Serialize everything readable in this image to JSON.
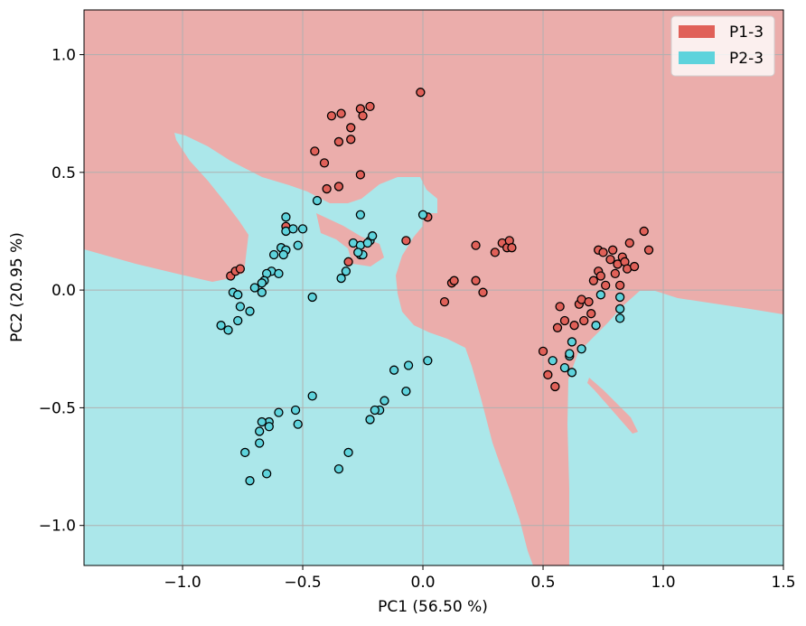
{
  "chart_data": {
    "type": "scatter",
    "title": "",
    "xlabel": "PC1 (56.50 %)",
    "ylabel": "PC2 (20.95 %)",
    "xlim": [
      -1.41,
      1.5
    ],
    "ylim": [
      -1.17,
      1.19
    ],
    "xticks": [
      -1.0,
      -0.5,
      0.0,
      0.5,
      1.0,
      1.5
    ],
    "yticks": [
      -1.0,
      -0.5,
      0.0,
      0.5,
      1.0
    ],
    "xtick_labels": [
      "−1.0",
      "−0.5",
      "0.0",
      "0.5",
      "1.0",
      "1.5"
    ],
    "ytick_labels": [
      "−1.0",
      "−0.5",
      "0.0",
      "0.5",
      "1.0"
    ],
    "grid": true,
    "legend_position": "top-right",
    "background_regions": {
      "P1-3": "#ebadab",
      "P2-3": "#abe7ea"
    },
    "series": [
      {
        "name": "P1-3",
        "color": "#e06058",
        "points": [
          [
            -0.01,
            0.84
          ],
          [
            -0.26,
            0.77
          ],
          [
            -0.22,
            0.78
          ],
          [
            -0.38,
            0.74
          ],
          [
            -0.34,
            0.75
          ],
          [
            -0.25,
            0.74
          ],
          [
            -0.3,
            0.69
          ],
          [
            -0.35,
            0.63
          ],
          [
            -0.3,
            0.64
          ],
          [
            -0.45,
            0.59
          ],
          [
            -0.41,
            0.54
          ],
          [
            -0.26,
            0.49
          ],
          [
            -0.35,
            0.44
          ],
          [
            -0.4,
            0.43
          ],
          [
            0.02,
            0.31
          ],
          [
            -0.57,
            0.27
          ],
          [
            -0.07,
            0.21
          ],
          [
            -0.31,
            0.12
          ],
          [
            -0.8,
            0.06
          ],
          [
            -0.78,
            0.08
          ],
          [
            -0.76,
            0.09
          ],
          [
            0.22,
            0.19
          ],
          [
            0.33,
            0.2
          ],
          [
            0.35,
            0.18
          ],
          [
            0.36,
            0.21
          ],
          [
            0.37,
            0.18
          ],
          [
            0.3,
            0.16
          ],
          [
            0.12,
            0.03
          ],
          [
            0.13,
            0.04
          ],
          [
            0.22,
            0.04
          ],
          [
            0.25,
            -0.01
          ],
          [
            0.09,
            -0.05
          ],
          [
            0.5,
            -0.26
          ],
          [
            0.52,
            -0.36
          ],
          [
            0.55,
            -0.41
          ],
          [
            0.57,
            -0.07
          ],
          [
            0.56,
            -0.16
          ],
          [
            0.59,
            -0.13
          ],
          [
            0.63,
            -0.15
          ],
          [
            0.65,
            -0.06
          ],
          [
            0.66,
            -0.04
          ],
          [
            0.67,
            -0.13
          ],
          [
            0.69,
            -0.05
          ],
          [
            0.7,
            -0.1
          ],
          [
            0.71,
            0.04
          ],
          [
            0.73,
            0.17
          ],
          [
            0.73,
            0.08
          ],
          [
            0.74,
            0.06
          ],
          [
            0.75,
            0.16
          ],
          [
            0.76,
            0.02
          ],
          [
            0.78,
            0.13
          ],
          [
            0.79,
            0.17
          ],
          [
            0.8,
            0.07
          ],
          [
            0.81,
            0.11
          ],
          [
            0.82,
            0.02
          ],
          [
            0.83,
            0.14
          ],
          [
            0.84,
            0.12
          ],
          [
            0.85,
            0.09
          ],
          [
            0.86,
            0.2
          ],
          [
            0.88,
            0.1
          ],
          [
            0.92,
            0.25
          ],
          [
            0.94,
            0.17
          ]
        ]
      },
      {
        "name": "P2-3",
        "color": "#5ed3dc",
        "points": [
          [
            -0.44,
            0.38
          ],
          [
            -0.26,
            0.32
          ],
          [
            0.0,
            0.32
          ],
          [
            -0.57,
            0.31
          ],
          [
            -0.57,
            0.25
          ],
          [
            -0.54,
            0.26
          ],
          [
            -0.5,
            0.26
          ],
          [
            -0.59,
            0.18
          ],
          [
            -0.57,
            0.17
          ],
          [
            -0.52,
            0.19
          ],
          [
            -0.62,
            0.15
          ],
          [
            -0.58,
            0.15
          ],
          [
            -0.29,
            0.2
          ],
          [
            -0.26,
            0.19
          ],
          [
            -0.22,
            0.21
          ],
          [
            -0.21,
            0.23
          ],
          [
            -0.23,
            0.2
          ],
          [
            -0.26,
            0.15
          ],
          [
            -0.25,
            0.15
          ],
          [
            -0.27,
            0.16
          ],
          [
            -0.34,
            0.05
          ],
          [
            -0.32,
            0.08
          ],
          [
            -0.63,
            0.08
          ],
          [
            -0.65,
            0.07
          ],
          [
            -0.6,
            0.07
          ],
          [
            -0.66,
            0.04
          ],
          [
            -0.7,
            0.01
          ],
          [
            -0.67,
            0.03
          ],
          [
            -0.67,
            -0.01
          ],
          [
            -0.79,
            -0.01
          ],
          [
            -0.77,
            -0.02
          ],
          [
            -0.76,
            -0.07
          ],
          [
            -0.72,
            -0.09
          ],
          [
            -0.77,
            -0.13
          ],
          [
            -0.84,
            -0.15
          ],
          [
            -0.81,
            -0.17
          ],
          [
            -0.46,
            -0.03
          ],
          [
            0.02,
            -0.3
          ],
          [
            -0.06,
            -0.32
          ],
          [
            -0.12,
            -0.34
          ],
          [
            -0.07,
            -0.43
          ],
          [
            -0.46,
            -0.45
          ],
          [
            -0.16,
            -0.47
          ],
          [
            -0.18,
            -0.51
          ],
          [
            -0.2,
            -0.51
          ],
          [
            -0.22,
            -0.55
          ],
          [
            -0.53,
            -0.51
          ],
          [
            -0.52,
            -0.57
          ],
          [
            -0.6,
            -0.52
          ],
          [
            -0.64,
            -0.56
          ],
          [
            -0.67,
            -0.56
          ],
          [
            -0.68,
            -0.6
          ],
          [
            -0.64,
            -0.58
          ],
          [
            -0.68,
            -0.65
          ],
          [
            -0.74,
            -0.69
          ],
          [
            -0.31,
            -0.69
          ],
          [
            -0.35,
            -0.76
          ],
          [
            -0.65,
            -0.78
          ],
          [
            -0.72,
            -0.81
          ],
          [
            0.54,
            -0.3
          ],
          [
            0.61,
            -0.28
          ],
          [
            0.61,
            -0.27
          ],
          [
            0.59,
            -0.33
          ],
          [
            0.62,
            -0.35
          ],
          [
            0.62,
            -0.22
          ],
          [
            0.66,
            -0.25
          ],
          [
            0.72,
            -0.15
          ],
          [
            0.74,
            -0.02
          ],
          [
            0.82,
            -0.03
          ],
          [
            0.82,
            -0.08
          ],
          [
            0.82,
            -0.12
          ]
        ]
      }
    ]
  }
}
